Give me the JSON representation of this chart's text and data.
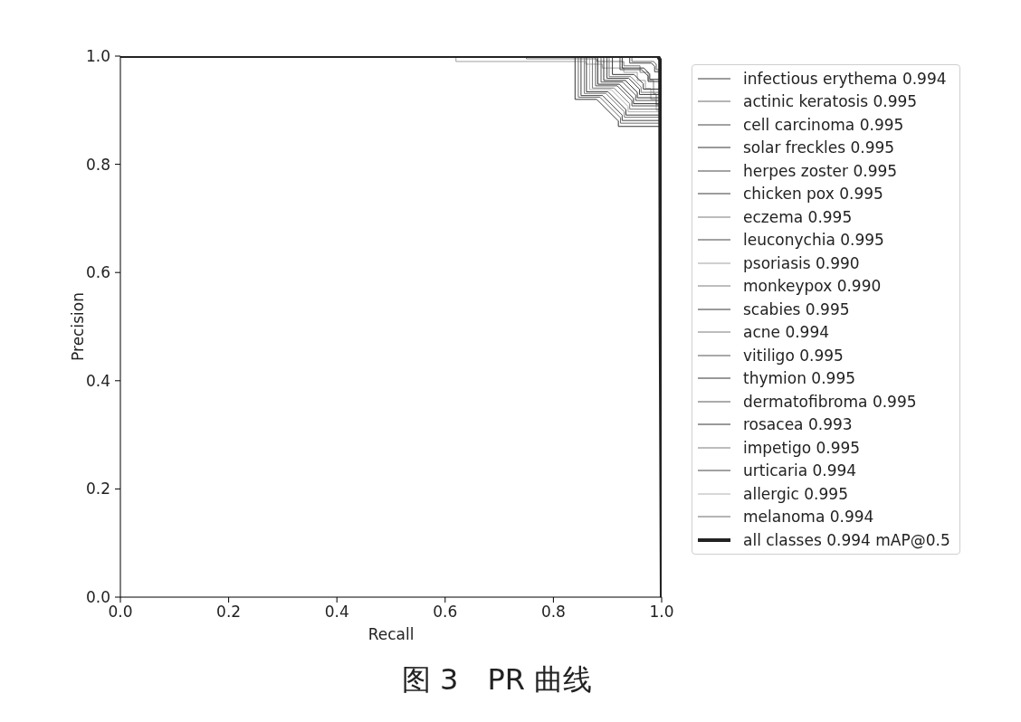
{
  "chart_data": {
    "type": "line",
    "xlabel": "Recall",
    "ylabel": "Precision",
    "annotations": [
      "图 3　PR 曲线"
    ],
    "xlim": [
      0,
      1
    ],
    "ylim": [
      0,
      1
    ],
    "xticks": [
      {
        "value": 0,
        "label": "0.0"
      },
      {
        "value": 0.2,
        "label": "0.2"
      },
      {
        "value": 0.4,
        "label": "0.4"
      },
      {
        "value": 0.6,
        "label": "0.6"
      },
      {
        "value": 0.8,
        "label": "0.8"
      },
      {
        "value": 1,
        "label": "1.0"
      }
    ],
    "yticks": [
      {
        "value": 0,
        "label": "0.0"
      },
      {
        "value": 0.2,
        "label": "0.2"
      },
      {
        "value": 0.4,
        "label": "0.4"
      },
      {
        "value": 0.6,
        "label": "0.6"
      },
      {
        "value": 0.8,
        "label": "0.8"
      },
      {
        "value": 1,
        "label": "1.0"
      }
    ],
    "legend": "right",
    "series": [
      {
        "name": "infectious erythema 0.994",
        "color": "#3c3c3c",
        "x": [
          0.861,
          0.861,
          0.901,
          0.934,
          0.934,
          0.997
        ],
        "values": [
          1,
          0.934,
          0.934,
          0.901,
          0.891,
          0.891
        ]
      },
      {
        "name": "actinic keratosis 0.995",
        "color": "#6b6b6b",
        "x": [
          0.945,
          0.945,
          0.985,
          0.99,
          0.99,
          0.997
        ],
        "values": [
          1,
          0.99,
          0.99,
          0.985,
          0.975,
          0.975
        ]
      },
      {
        "name": "cell carcinoma 0.995",
        "color": "#474747",
        "x": [
          0.941,
          0.941,
          0.981,
          0.987,
          0.987,
          0.997
        ],
        "values": [
          1,
          0.987,
          0.987,
          0.981,
          0.971,
          0.971
        ]
      },
      {
        "name": "solar freckles 0.995",
        "color": "#353535",
        "x": [
          0.927,
          0.927,
          0.967,
          0.978,
          0.978,
          0.997
        ],
        "values": [
          1,
          0.978,
          0.978,
          0.967,
          0.957,
          0.957
        ]
      },
      {
        "name": "herpes zoster 0.995",
        "color": "#484848",
        "x": [
          0.923,
          0.923,
          0.963,
          0.975,
          0.975,
          0.997
        ],
        "values": [
          1,
          0.975,
          0.975,
          0.963,
          0.953,
          0.953
        ]
      },
      {
        "name": "chicken pox 0.995",
        "color": "#3a3a3a",
        "x": [
          0.909,
          0.909,
          0.949,
          0.966,
          0.966,
          0.997
        ],
        "values": [
          1,
          0.966,
          0.966,
          0.949,
          0.939,
          0.939
        ]
      },
      {
        "name": "eczema 0.995",
        "color": "#7a7a7a",
        "x": [
          0.903,
          0.903,
          0.943,
          0.962,
          0.962,
          0.997
        ],
        "values": [
          1,
          0.962,
          0.962,
          0.943,
          0.933,
          0.933
        ]
      },
      {
        "name": "leuconychia 0.995",
        "color": "#454545",
        "x": [
          0.899,
          0.899,
          0.939,
          0.959,
          0.959,
          0.997
        ],
        "values": [
          1,
          0.959,
          0.959,
          0.939,
          0.929,
          0.929
        ]
      },
      {
        "name": "psoriasis 0.990",
        "color": "#a0a0a0",
        "x": [
          0.62,
          0.62,
          0.86,
          0.86,
          0.89,
          0.89,
          0.93,
          0.93,
          0.955,
          0.955,
          0.97,
          0.97,
          0.98,
          0.98,
          0.99,
          0.99,
          0.996
        ],
        "values": [
          1,
          0.99,
          0.99,
          0.985,
          0.985,
          0.978,
          0.978,
          0.97,
          0.97,
          0.955,
          0.955,
          0.94,
          0.94,
          0.92,
          0.92,
          0.9,
          0.9
        ]
      },
      {
        "name": "monkeypox 0.990",
        "color": "#7d7d7d",
        "x": [
          0.75,
          0.75,
          0.88,
          0.88,
          0.93,
          0.93,
          0.96,
          0.96,
          0.975,
          0.975,
          0.985,
          0.985,
          0.99,
          0.99,
          0.996
        ],
        "values": [
          1,
          0.995,
          0.995,
          0.99,
          0.99,
          0.982,
          0.982,
          0.97,
          0.97,
          0.955,
          0.955,
          0.93,
          0.93,
          0.91,
          0.91
        ]
      },
      {
        "name": "scabies 0.995",
        "color": "#363636",
        "x": [
          0.893,
          0.893,
          0.933,
          0.955,
          0.955,
          0.997
        ],
        "values": [
          1,
          0.955,
          0.955,
          0.933,
          0.923,
          0.923
        ]
      },
      {
        "name": "acne 0.994",
        "color": "#7a7a7a",
        "x": [
          0.857,
          0.857,
          0.897,
          0.931,
          0.931,
          0.997
        ],
        "values": [
          1,
          0.931,
          0.931,
          0.897,
          0.887,
          0.887
        ]
      },
      {
        "name": "vitiligo 0.995",
        "color": "#555555",
        "x": [
          0.888,
          0.888,
          0.928,
          0.952,
          0.952,
          0.997
        ],
        "values": [
          1,
          0.952,
          0.952,
          0.928,
          0.918,
          0.918
        ]
      },
      {
        "name": "thymion 0.995",
        "color": "#333333",
        "x": [
          0.882,
          0.882,
          0.922,
          0.948,
          0.948,
          0.997
        ],
        "values": [
          1,
          0.948,
          0.948,
          0.922,
          0.912,
          0.912
        ]
      },
      {
        "name": "dermatofibroma 0.995",
        "color": "#565656",
        "x": [
          0.878,
          0.878,
          0.918,
          0.945,
          0.945,
          0.997
        ],
        "values": [
          1,
          0.945,
          0.945,
          0.918,
          0.908,
          0.908
        ]
      },
      {
        "name": "rosacea 0.993",
        "color": "#353535",
        "x": [
          0.84,
          0.84,
          0.88,
          0.92,
          0.92,
          0.997
        ],
        "values": [
          1,
          0.92,
          0.92,
          0.88,
          0.87,
          0.87
        ]
      },
      {
        "name": "impetigo 0.995",
        "color": "#7a7a7a",
        "x": [
          0.872,
          0.872,
          0.912,
          0.941,
          0.941,
          0.997
        ],
        "values": [
          1,
          0.941,
          0.941,
          0.912,
          0.902,
          0.902
        ]
      },
      {
        "name": "urticaria 0.994",
        "color": "#444444",
        "x": [
          0.851,
          0.851,
          0.891,
          0.927,
          0.927,
          0.997
        ],
        "values": [
          1,
          0.927,
          0.927,
          0.891,
          0.881,
          0.881
        ]
      },
      {
        "name": "allergic 0.995",
        "color": "#b0b0b0",
        "x": [
          0.867,
          0.867,
          0.907,
          0.938,
          0.938,
          0.997
        ],
        "values": [
          1,
          0.938,
          0.938,
          0.907,
          0.897,
          0.897
        ]
      },
      {
        "name": "melanoma 0.994",
        "color": "#6a6a6a",
        "x": [
          0.846,
          0.846,
          0.886,
          0.924,
          0.924,
          0.997
        ],
        "values": [
          1,
          0.924,
          0.924,
          0.886,
          0.876,
          0.876
        ]
      },
      {
        "name": "all classes 0.994 mAP@0.5",
        "color": "#222222",
        "x": [
          0,
          0.993,
          0.997,
          0.998,
          1
        ],
        "values": [
          1,
          1,
          0.993,
          0.5,
          0
        ]
      }
    ]
  }
}
